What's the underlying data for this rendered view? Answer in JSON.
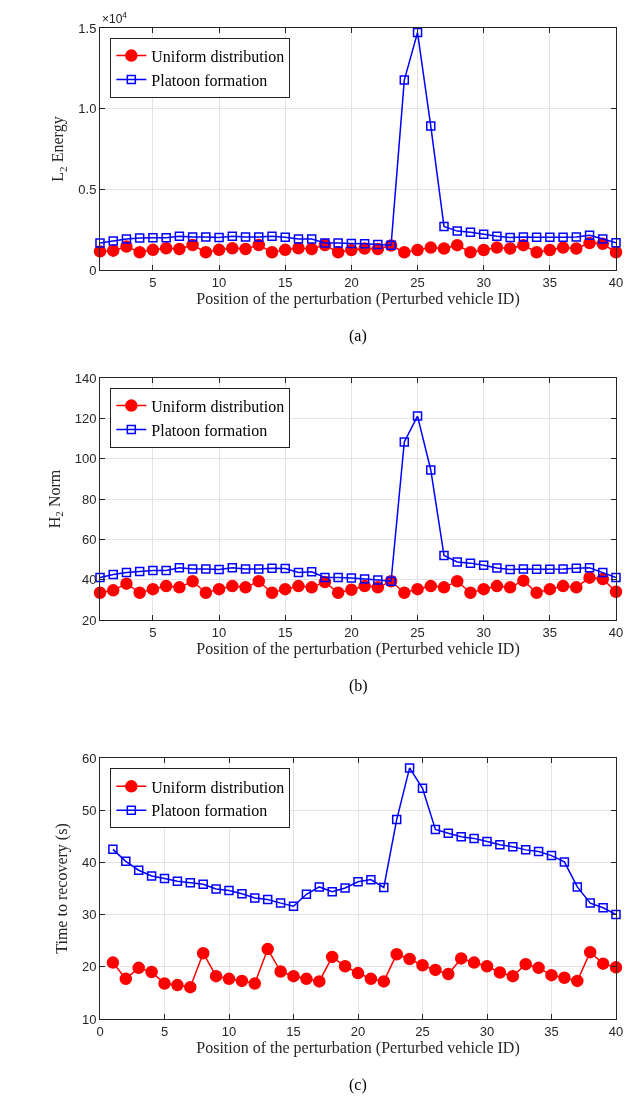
{
  "chart_data": [
    {
      "type": "line",
      "ylabel": "L$_{2}$ Energy",
      "xlabel": "Position of the perturbation (Perturbed vehicle ID)",
      "annotations": [
        "×10$^{4}$",
        "(a)"
      ],
      "x": [
        1,
        2,
        3,
        4,
        5,
        6,
        7,
        8,
        9,
        10,
        11,
        12,
        13,
        14,
        15,
        16,
        17,
        18,
        19,
        20,
        21,
        22,
        23,
        24,
        25,
        26,
        27,
        28,
        29,
        30,
        31,
        32,
        33,
        34,
        35,
        36,
        37,
        38,
        39,
        40
      ],
      "xlim": [
        1,
        40
      ],
      "xticks": [
        5,
        10,
        15,
        20,
        25,
        30,
        35,
        40
      ],
      "ylim": [
        0,
        1.5
      ],
      "yticks": [
        0,
        0.5,
        {
          "value": 1,
          "label": "1.0"
        },
        1.5
      ],
      "grid": true,
      "legend": "top left",
      "line_style": "solid",
      "series": [
        {
          "name": "Uniform distribution",
          "color": "#ff0000",
          "marker": "circle",
          "values": [
            0.115,
            0.12,
            0.145,
            0.11,
            0.125,
            0.135,
            0.13,
            0.155,
            0.11,
            0.125,
            0.135,
            0.13,
            0.155,
            0.11,
            0.125,
            0.135,
            0.13,
            0.155,
            0.11,
            0.124,
            0.133,
            0.13,
            0.152,
            0.11,
            0.124,
            0.139,
            0.133,
            0.154,
            0.11,
            0.124,
            0.139,
            0.133,
            0.154,
            0.11,
            0.124,
            0.139,
            0.133,
            0.167,
            0.162,
            0.11
          ]
        },
        {
          "name": "Platoon formation",
          "color": "#0000ff",
          "marker": "square",
          "values": [
            0.167,
            0.18,
            0.192,
            0.198,
            0.2,
            0.2,
            0.209,
            0.205,
            0.205,
            0.202,
            0.209,
            0.205,
            0.205,
            0.209,
            0.203,
            0.192,
            0.192,
            0.167,
            0.167,
            0.165,
            0.163,
            0.158,
            0.154,
            1.177,
            1.472,
            0.892,
            0.27,
            0.241,
            0.234,
            0.222,
            0.209,
            0.202,
            0.205,
            0.203,
            0.203,
            0.203,
            0.205,
            0.215,
            0.192,
            0.169
          ]
        }
      ]
    },
    {
      "type": "line",
      "ylabel": "H$_{2}$ Norm",
      "xlabel": "Position of the perturbation (Perturbed vehicle ID)",
      "annotations": [
        "(b)"
      ],
      "x": [
        1,
        2,
        3,
        4,
        5,
        6,
        7,
        8,
        9,
        10,
        11,
        12,
        13,
        14,
        15,
        16,
        17,
        18,
        19,
        20,
        21,
        22,
        23,
        24,
        25,
        26,
        27,
        28,
        29,
        30,
        31,
        32,
        33,
        34,
        35,
        36,
        37,
        38,
        39,
        40
      ],
      "xlim": [
        1,
        40
      ],
      "xticks": [
        5,
        10,
        15,
        20,
        25,
        30,
        35,
        40
      ],
      "ylim": [
        20,
        140
      ],
      "yticks": [
        20,
        40,
        60,
        80,
        100,
        120,
        140
      ],
      "grid": true,
      "legend": "top left",
      "line_style": "solid",
      "series": [
        {
          "name": "Uniform distribution",
          "color": "#ff0000",
          "marker": "circle",
          "values": [
            33.5,
            34.7,
            38.0,
            33.5,
            35.3,
            36.8,
            36.2,
            39.2,
            33.5,
            35.3,
            36.8,
            36.2,
            39.2,
            33.5,
            35.3,
            36.8,
            36.2,
            38.8,
            33.5,
            35.0,
            36.8,
            36.2,
            39.2,
            33.5,
            35.3,
            36.8,
            36.2,
            39.2,
            33.5,
            35.3,
            36.8,
            36.2,
            39.5,
            33.5,
            35.3,
            36.8,
            36.2,
            41.0,
            40.3,
            34.0
          ]
        },
        {
          "name": "Platoon formation",
          "color": "#0000ff",
          "marker": "square",
          "values": [
            41.1,
            42.6,
            43.6,
            44.1,
            44.5,
            44.5,
            45.9,
            45.3,
            45.3,
            45.0,
            45.9,
            45.3,
            45.3,
            45.6,
            45.5,
            43.6,
            43.9,
            41.1,
            41.1,
            40.8,
            40.3,
            39.8,
            39.2,
            108.3,
            121.1,
            94.4,
            52.0,
            48.8,
            48.2,
            47.1,
            45.8,
            45.0,
            45.3,
            45.2,
            45.2,
            45.3,
            45.6,
            45.9,
            43.5,
            41.1
          ]
        }
      ]
    },
    {
      "type": "line",
      "ylabel": "Time to recovery (s)",
      "xlabel": "Position of the perturbation (Perturbed vehicle ID)",
      "annotations": [
        "(c)"
      ],
      "x": [
        1,
        2,
        3,
        4,
        5,
        6,
        7,
        8,
        9,
        10,
        11,
        12,
        13,
        14,
        15,
        16,
        17,
        18,
        19,
        20,
        21,
        22,
        23,
        24,
        25,
        26,
        27,
        28,
        29,
        30,
        31,
        32,
        33,
        34,
        35,
        36,
        37,
        38,
        39,
        40
      ],
      "xlim": [
        0,
        40
      ],
      "xticks": [
        0,
        5,
        10,
        15,
        20,
        25,
        30,
        35,
        40
      ],
      "ylim": [
        10,
        60
      ],
      "yticks": [
        10,
        20,
        30,
        40,
        50,
        60
      ],
      "grid": true,
      "legend": "top left",
      "line_style": "solid",
      "series": [
        {
          "name": "Uniform distribution",
          "color": "#ff0000",
          "marker": "circle",
          "values": [
            20.8,
            17.7,
            19.8,
            19.0,
            16.8,
            16.5,
            16.1,
            22.6,
            18.2,
            17.7,
            17.3,
            16.8,
            23.4,
            19.1,
            18.2,
            17.7,
            17.2,
            21.9,
            20.1,
            18.8,
            17.7,
            17.2,
            22.4,
            21.5,
            20.3,
            19.4,
            18.6,
            21.6,
            20.8,
            20.1,
            18.9,
            18.2,
            20.5,
            19.8,
            18.4,
            17.9,
            17.3,
            22.8,
            20.6,
            19.9
          ]
        },
        {
          "name": "Platoon formation",
          "color": "#0000ff",
          "marker": "square",
          "values": [
            42.5,
            40.2,
            38.5,
            37.4,
            36.9,
            36.4,
            36.1,
            35.8,
            34.9,
            34.6,
            34.0,
            33.2,
            32.9,
            32.2,
            31.6,
            33.9,
            35.3,
            34.4,
            35.1,
            36.3,
            36.7,
            35.2,
            48.2,
            58.1,
            54.2,
            46.3,
            45.6,
            44.9,
            44.6,
            44.0,
            43.4,
            43.0,
            42.4,
            42.1,
            41.3,
            40.1,
            35.3,
            32.2,
            31.3,
            30.0
          ]
        }
      ]
    }
  ]
}
